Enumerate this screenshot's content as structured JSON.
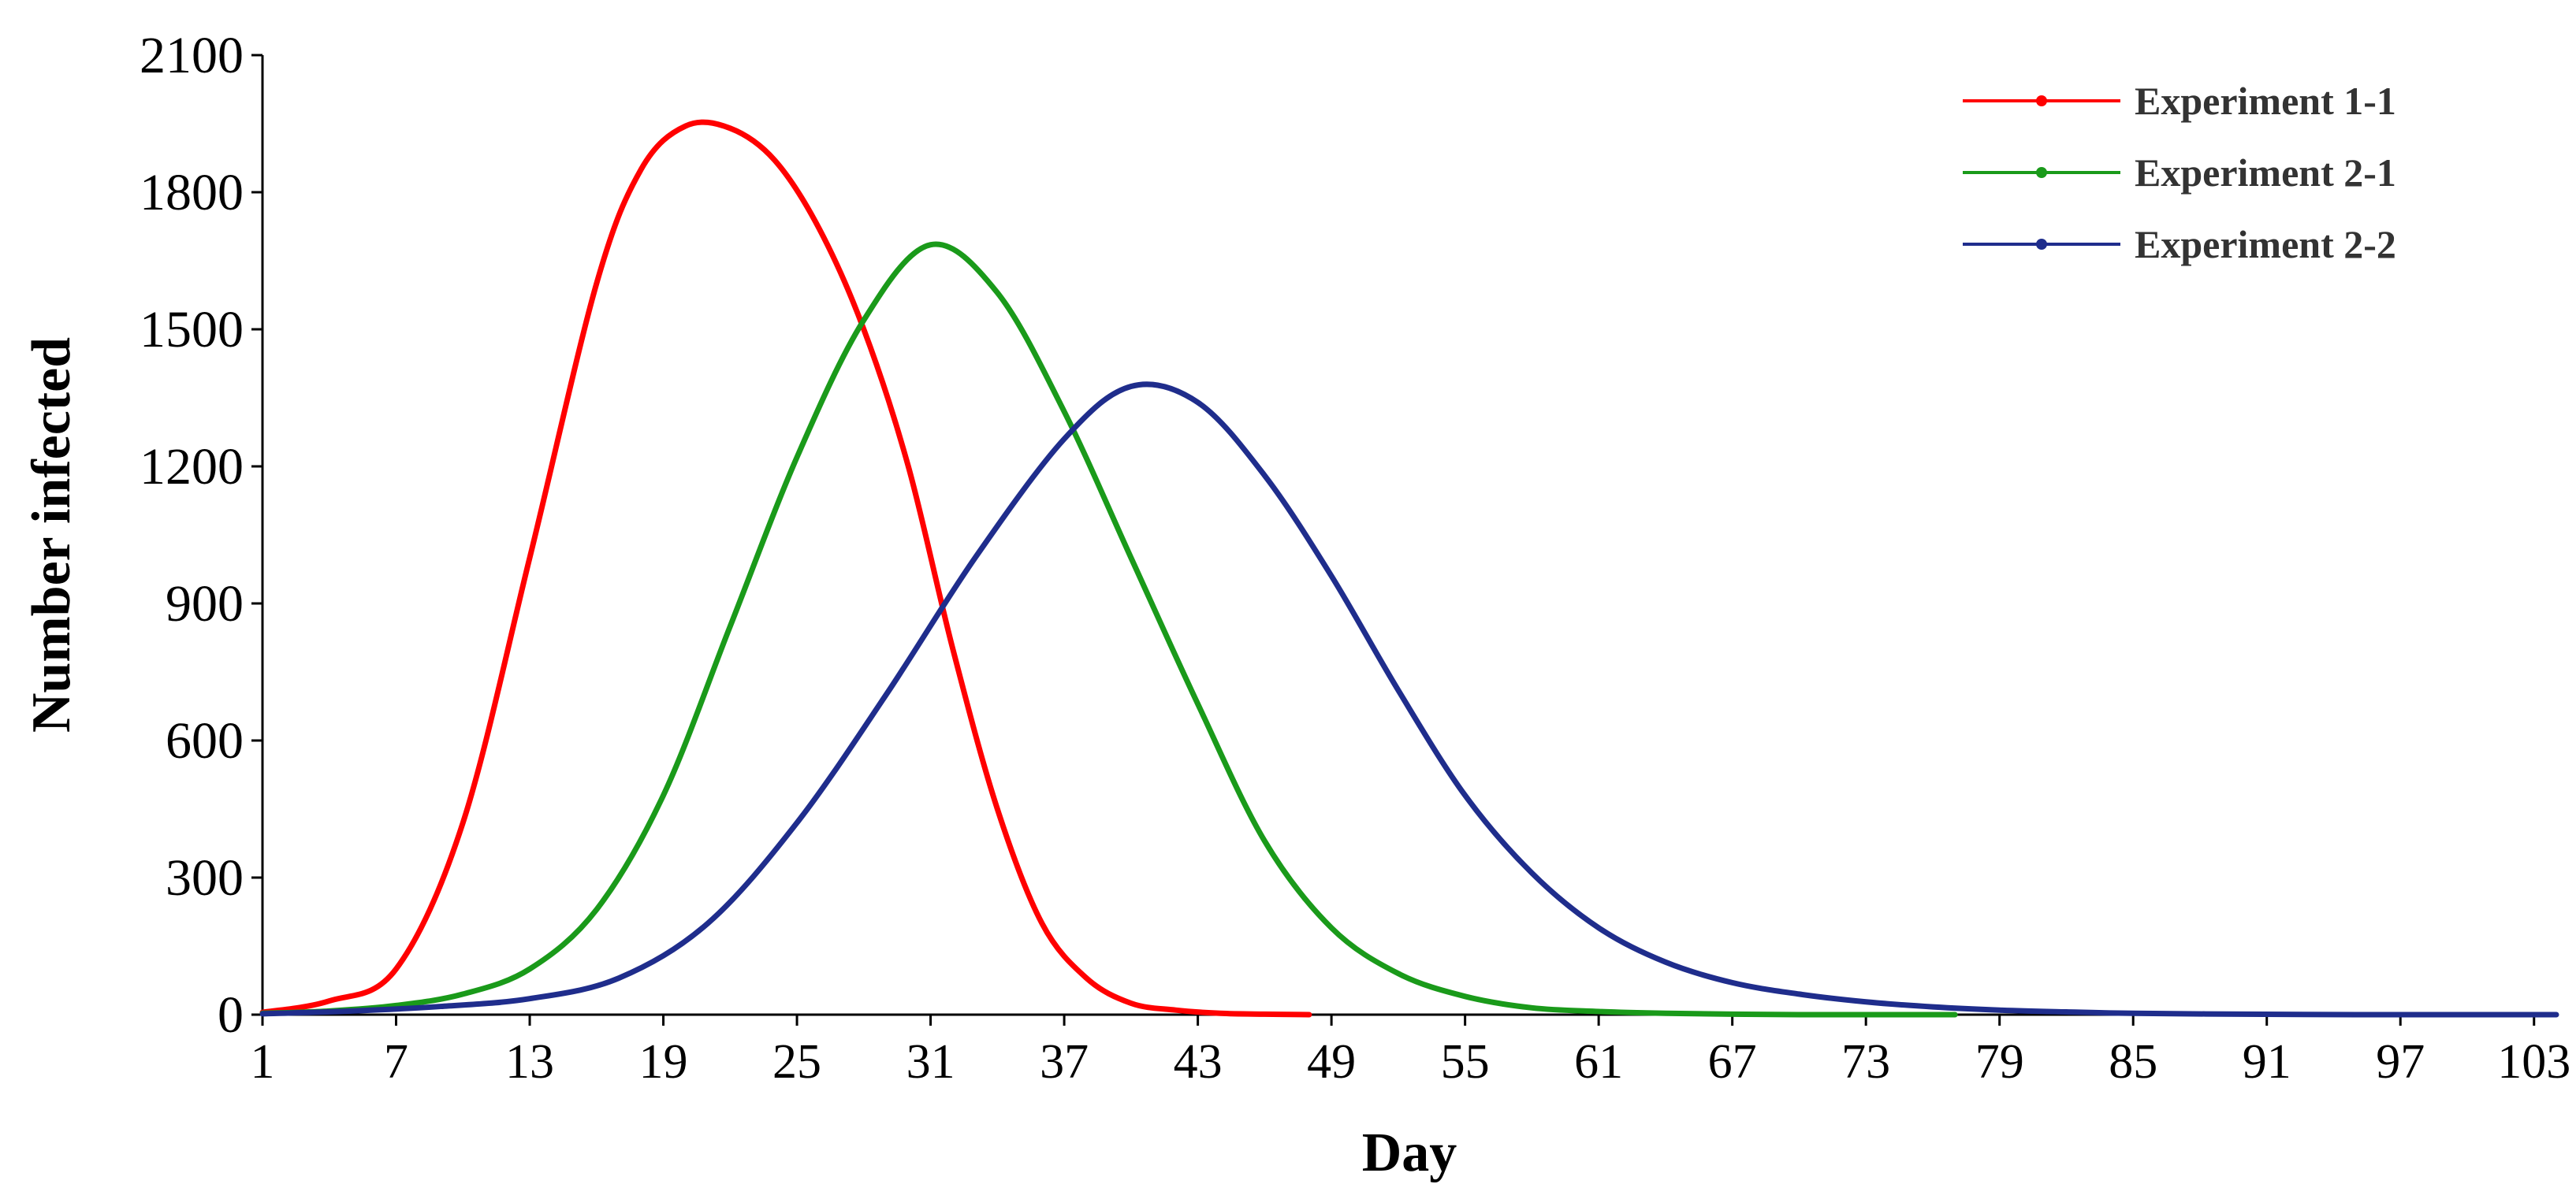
{
  "chart_data": {
    "type": "line",
    "title": "",
    "xlabel": "Day",
    "ylabel": "Number infected",
    "xlim": [
      1,
      104
    ],
    "ylim": [
      0,
      2100
    ],
    "yticks": [
      0,
      300,
      600,
      900,
      1200,
      1500,
      1800,
      2100
    ],
    "xticks": [
      1,
      7,
      13,
      19,
      25,
      31,
      37,
      43,
      49,
      55,
      61,
      67,
      73,
      79,
      85,
      91,
      97,
      103
    ],
    "grid": false,
    "legend_position": "top-right",
    "series": [
      {
        "name": "Experiment 1-1",
        "color": "#ff0000",
        "x": [
          1,
          4,
          7,
          10,
          13,
          16,
          18,
          20,
          22,
          24,
          26,
          28,
          30,
          32,
          34,
          36,
          38,
          40,
          42,
          44,
          46,
          48
        ],
        "y": [
          5,
          30,
          100,
          420,
          1000,
          1600,
          1850,
          1945,
          1940,
          1870,
          1720,
          1500,
          1200,
          800,
          450,
          200,
          80,
          25,
          10,
          3,
          1,
          0
        ]
      },
      {
        "name": "Experiment 2-1",
        "color": "#1a9a1a",
        "x": [
          1,
          4,
          7,
          10,
          13,
          16,
          19,
          22,
          25,
          28,
          31,
          34,
          37,
          40,
          43,
          46,
          49,
          52,
          55,
          58,
          61,
          64,
          67,
          70,
          73,
          77
        ],
        "y": [
          3,
          8,
          20,
          45,
          100,
          230,
          480,
          850,
          1220,
          1520,
          1685,
          1580,
          1320,
          1000,
          680,
          380,
          190,
          90,
          40,
          15,
          7,
          3,
          1,
          0,
          0,
          0
        ]
      },
      {
        "name": "Experiment 2-2",
        "color": "#1f2d8c",
        "x": [
          1,
          5,
          9,
          13,
          17,
          21,
          25,
          29,
          33,
          37,
          40,
          43,
          46,
          49,
          52,
          55,
          58,
          61,
          64,
          67,
          70,
          73,
          76,
          79,
          82,
          85,
          90,
          95,
          100,
          104
        ],
        "y": [
          2,
          8,
          18,
          35,
          80,
          200,
          420,
          700,
          1000,
          1260,
          1375,
          1340,
          1180,
          960,
          710,
          480,
          310,
          190,
          115,
          70,
          45,
          28,
          17,
          10,
          6,
          3,
          1,
          0,
          0,
          0
        ]
      }
    ]
  }
}
